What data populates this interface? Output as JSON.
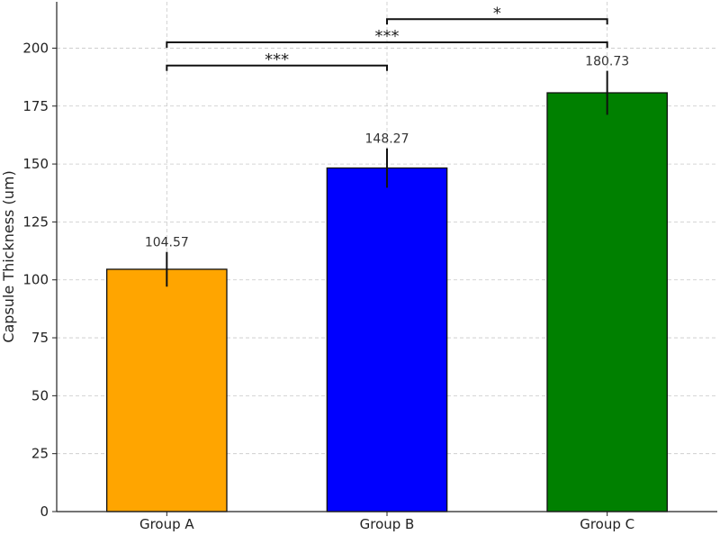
{
  "chart_data": {
    "type": "bar",
    "categories": [
      "Group A",
      "Group B",
      "Group C"
    ],
    "values": [
      104.57,
      148.27,
      180.73
    ],
    "errors": [
      7.5,
      8.5,
      9.5
    ],
    "value_labels": [
      "104.57",
      "148.27",
      "180.73"
    ],
    "colors": [
      "#FFA500",
      "#0000FF",
      "#008000"
    ],
    "title": "",
    "xlabel": "",
    "ylabel": "Capsule Thickness (um)",
    "ylim": [
      0,
      220
    ],
    "yticks": [
      0,
      25,
      50,
      75,
      100,
      125,
      150,
      175,
      200
    ],
    "grid": true,
    "significance": [
      {
        "from": "Group A",
        "to": "Group B",
        "label": "***",
        "level": 192.5
      },
      {
        "from": "Group A",
        "to": "Group C",
        "label": "***",
        "level": 202.5
      },
      {
        "from": "Group B",
        "to": "Group C",
        "label": "*",
        "level": 212.5
      }
    ]
  }
}
